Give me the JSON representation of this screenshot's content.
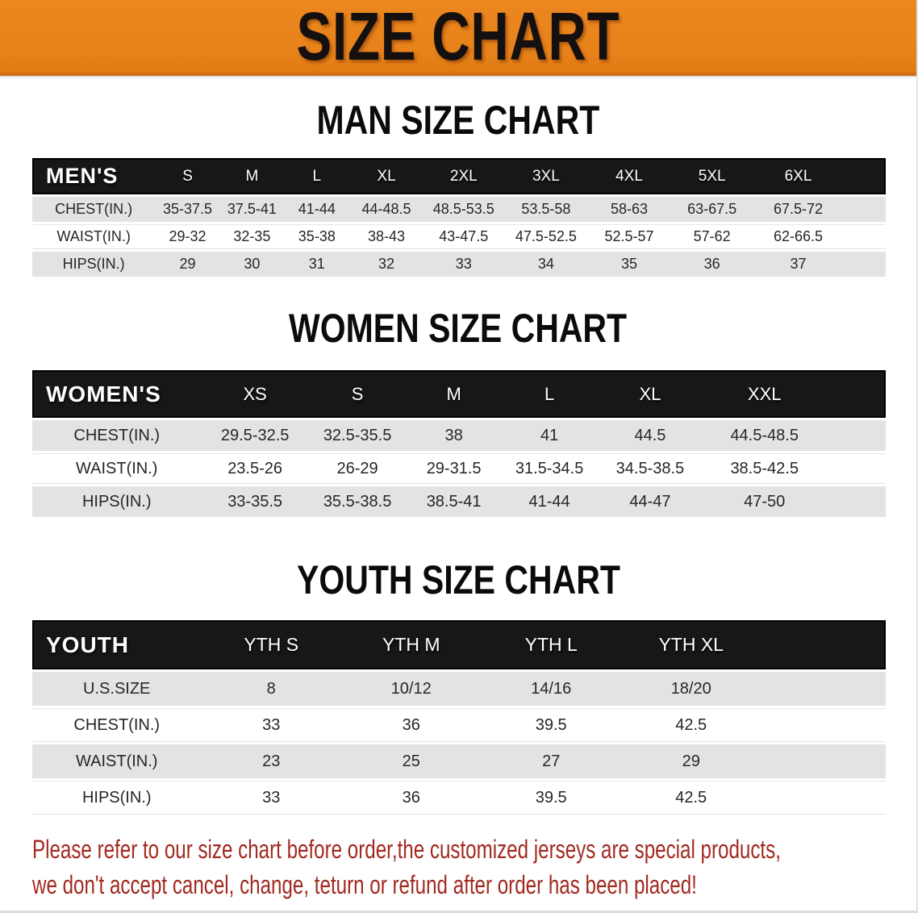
{
  "banner": {
    "title": "SIZE CHART",
    "bg_color": "#e8821a",
    "text_color": "#141010"
  },
  "chart_data": [
    {
      "type": "table",
      "title": "MAN SIZE CHART",
      "header_label": "MEN'S",
      "columns": [
        "S",
        "M",
        "L",
        "XL",
        "2XL",
        "3XL",
        "4XL",
        "5XL",
        "6XL"
      ],
      "rows": [
        {
          "label": "CHEST(IN.)",
          "values": [
            "35-37.5",
            "37.5-41",
            "41-44",
            "44-48.5",
            "48.5-53.5",
            "53.5-58",
            "58-63",
            "63-67.5",
            "67.5-72"
          ]
        },
        {
          "label": "WAIST(IN.)",
          "values": [
            "29-32",
            "32-35",
            "35-38",
            "38-43",
            "43-47.5",
            "47.5-52.5",
            "52.5-57",
            "57-62",
            "62-66.5"
          ]
        },
        {
          "label": "HIPS(IN.)",
          "values": [
            "29",
            "30",
            "31",
            "32",
            "33",
            "34",
            "35",
            "36",
            "37"
          ]
        }
      ]
    },
    {
      "type": "table",
      "title": "WOMEN SIZE CHART",
      "header_label": "WOMEN'S",
      "columns": [
        "XS",
        "S",
        "M",
        "L",
        "XL",
        "XXL"
      ],
      "rows": [
        {
          "label": "CHEST(IN.)",
          "values": [
            "29.5-32.5",
            "32.5-35.5",
            "38",
            "41",
            "44.5",
            "44.5-48.5"
          ]
        },
        {
          "label": "WAIST(IN.)",
          "values": [
            "23.5-26",
            "26-29",
            "29-31.5",
            "31.5-34.5",
            "34.5-38.5",
            "38.5-42.5"
          ]
        },
        {
          "label": "HIPS(IN.)",
          "values": [
            "33-35.5",
            "35.5-38.5",
            "38.5-41",
            "41-44",
            "44-47",
            "47-50"
          ]
        }
      ]
    },
    {
      "type": "table",
      "title": "YOUTH SIZE CHART",
      "header_label": "YOUTH",
      "columns": [
        "YTH S",
        "YTH M",
        "YTH L",
        "YTH XL"
      ],
      "rows": [
        {
          "label": "U.S.SIZE",
          "values": [
            "8",
            "10/12",
            "14/16",
            "18/20"
          ]
        },
        {
          "label": "CHEST(IN.)",
          "values": [
            "33",
            "36",
            "39.5",
            "42.5"
          ]
        },
        {
          "label": "WAIST(IN.)",
          "values": [
            "23",
            "25",
            "27",
            "29"
          ]
        },
        {
          "label": "HIPS(IN.)",
          "values": [
            "33",
            "36",
            "39.5",
            "42.5"
          ]
        }
      ]
    }
  ],
  "footer": {
    "line1": "Please refer to our size chart before order,the customized jerseys are special products,",
    "line2": "we don't accept cancel, change, teturn or refund after order has been placed!",
    "text_color": "#a22a20"
  }
}
